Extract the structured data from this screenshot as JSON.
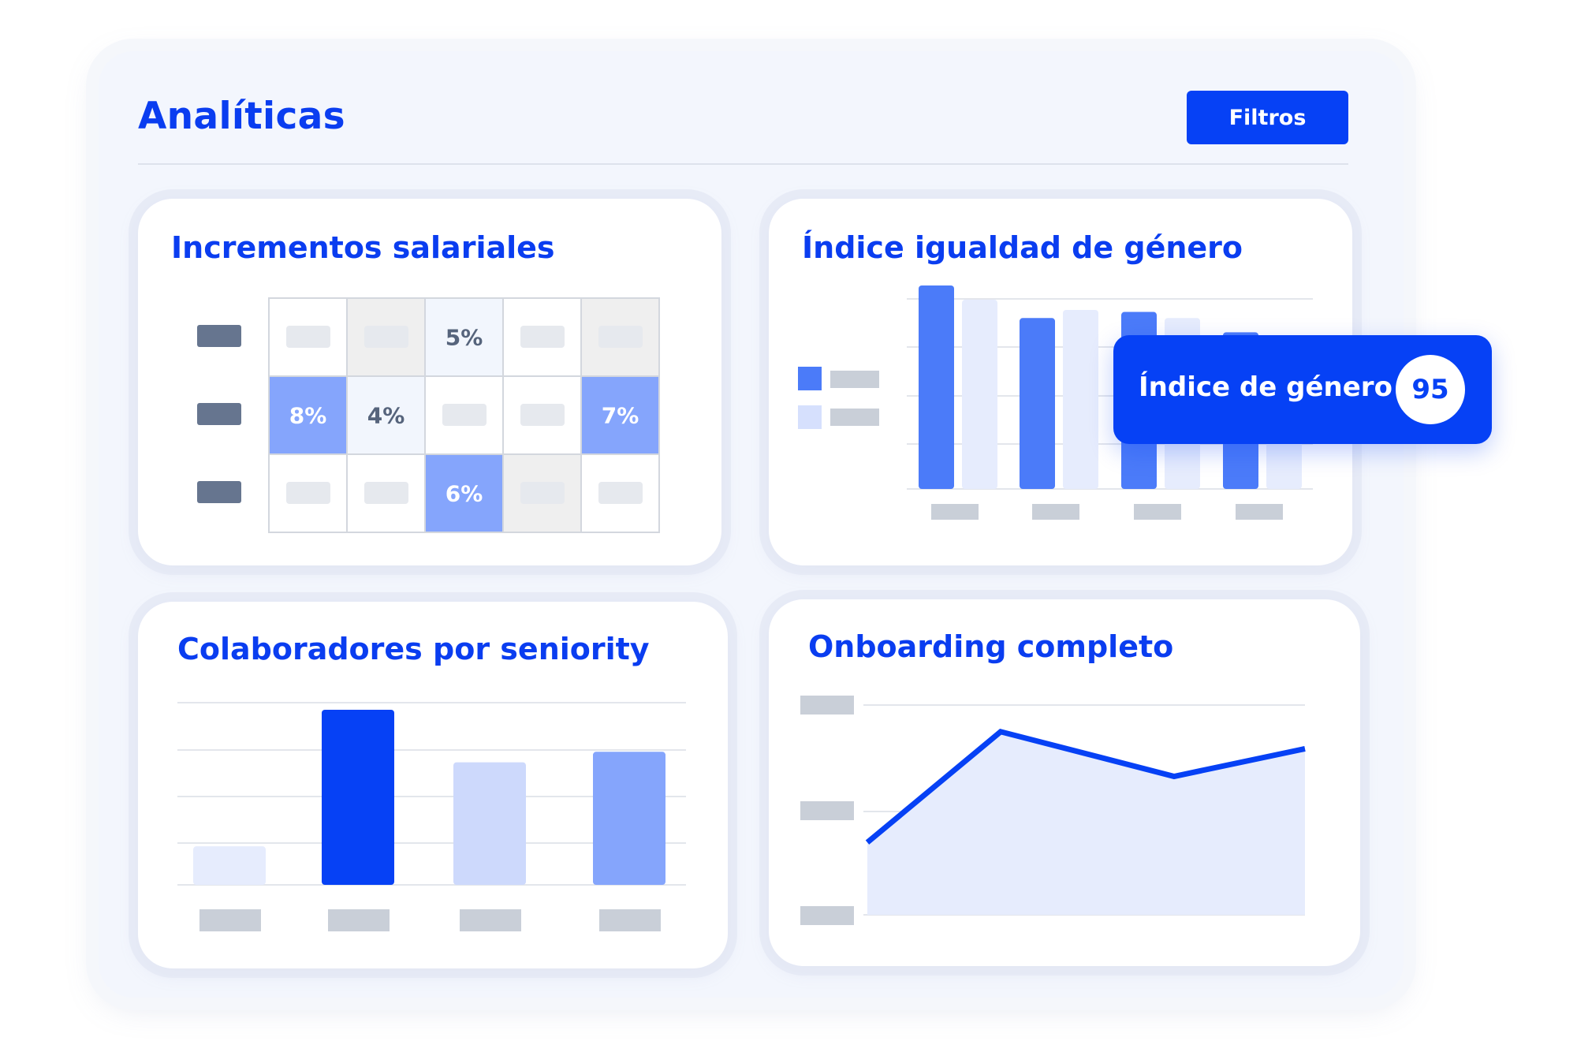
{
  "header": {
    "title": "Analíticas",
    "filter_button": "Filtros"
  },
  "colors": {
    "accent": "#0641f5",
    "title": "#0a3df0",
    "placeholder_gray": "#c9cfd8",
    "placeholder_dark": "#66758f"
  },
  "cards": {
    "salary": {
      "title": "Incrementos salariales",
      "chart_data": {
        "type": "heatmap",
        "rows": 3,
        "cols": 5,
        "cells": [
          [
            {
              "label": "",
              "shade": "white"
            },
            {
              "label": "",
              "shade": "gray"
            },
            {
              "label": "5%",
              "shade": "pale"
            },
            {
              "label": "",
              "shade": "white"
            },
            {
              "label": "",
              "shade": "gray"
            }
          ],
          [
            {
              "label": "8%",
              "shade": "blue"
            },
            {
              "label": "4%",
              "shade": "pale"
            },
            {
              "label": "",
              "shade": "white"
            },
            {
              "label": "",
              "shade": "white"
            },
            {
              "label": "7%",
              "shade": "blue"
            }
          ],
          [
            {
              "label": "",
              "shade": "white"
            },
            {
              "label": "",
              "shade": "white"
            },
            {
              "label": "6%",
              "shade": "blue"
            },
            {
              "label": "",
              "shade": "gray"
            },
            {
              "label": "",
              "shade": "white"
            }
          ]
        ]
      }
    },
    "gender": {
      "title": "Índice igualdad de género",
      "chart_data": {
        "type": "bar",
        "groups": 4,
        "series": [
          {
            "color": "#4b7bf9",
            "values": [
              1.0,
              0.84,
              0.87,
              0.77
            ]
          },
          {
            "color": "#e6ecfd",
            "values": [
              0.93,
              0.88,
              0.84,
              0.7
            ]
          }
        ],
        "ylim": [
          0,
          1
        ]
      },
      "tooltip": {
        "label": "Índice de género",
        "value": "95"
      }
    },
    "seniority": {
      "title": "Colaboradores por seniority",
      "chart_data": {
        "type": "bar",
        "values": [
          0.22,
          1.0,
          0.7,
          0.76
        ],
        "colors": [
          "#e6ecfd",
          "#0641f5",
          "#cdd9fc",
          "#85a5fc"
        ],
        "ylim": [
          0,
          1
        ]
      }
    },
    "onboarding": {
      "title": "Onboarding completo",
      "chart_data": {
        "type": "area",
        "values": [
          0.34,
          0.86,
          0.65,
          0.78
        ],
        "ylim": [
          0,
          1
        ]
      }
    }
  }
}
